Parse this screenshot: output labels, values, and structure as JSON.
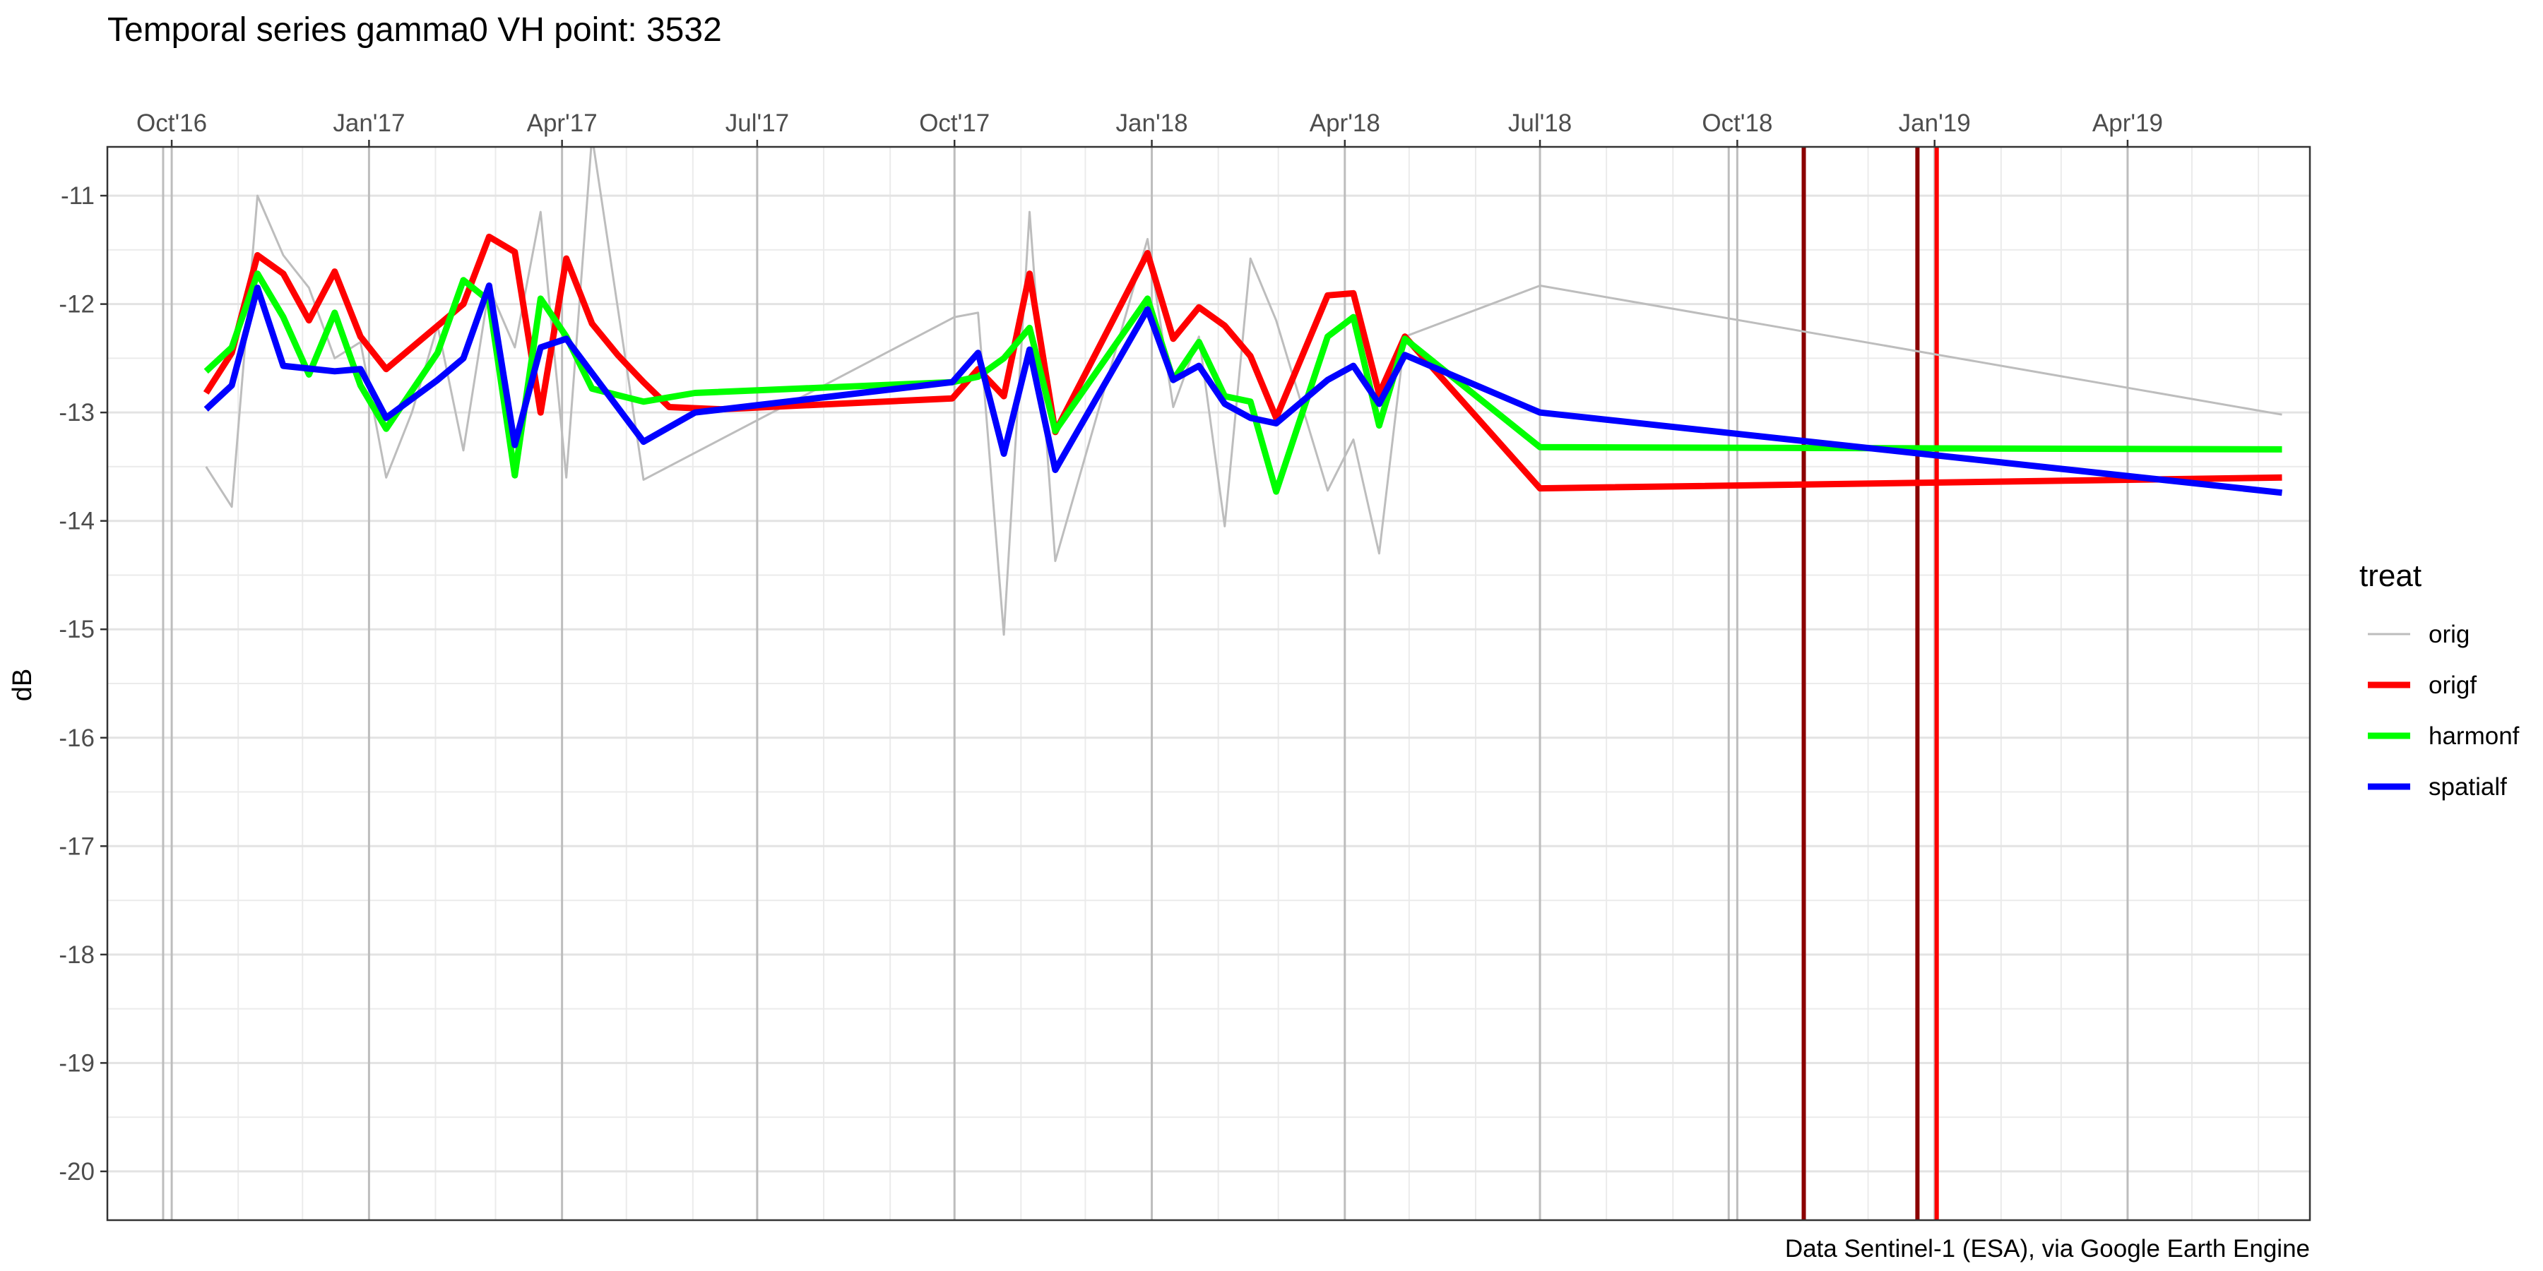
{
  "chart_data": {
    "type": "line",
    "title": "Temporal series gamma0 VH point: 3532",
    "ylabel": "dB",
    "xlabel": "",
    "caption": "Data Sentinel-1 (ESA), via Google Earth Engine",
    "legend": {
      "title": "treat",
      "position": "right"
    },
    "xlim": [
      "2016-09-01",
      "2019-06-25"
    ],
    "ylim": [
      -20.45,
      -10.55
    ],
    "grid": true,
    "x_ticks": [
      {
        "date": "2016-10-01",
        "label": "Oct'16"
      },
      {
        "date": "2017-01-01",
        "label": "Jan'17"
      },
      {
        "date": "2017-04-01",
        "label": "Apr'17"
      },
      {
        "date": "2017-07-01",
        "label": "Jul'17"
      },
      {
        "date": "2017-10-01",
        "label": "Oct'17"
      },
      {
        "date": "2018-01-01",
        "label": "Jan'18"
      },
      {
        "date": "2018-04-01",
        "label": "Apr'18"
      },
      {
        "date": "2018-07-01",
        "label": "Jul'18"
      },
      {
        "date": "2018-10-01",
        "label": "Oct'18"
      },
      {
        "date": "2019-01-01",
        "label": "Jan'19"
      },
      {
        "date": "2019-04-01",
        "label": "Apr'19"
      }
    ],
    "y_ticks": [
      -11,
      -12,
      -13,
      -14,
      -15,
      -16,
      -17,
      -18,
      -19,
      -20
    ],
    "y_tick_labels": [
      "-11",
      "-12",
      "-13",
      "-14",
      "-15",
      "-16",
      "-17",
      "-18",
      "-19",
      "-20"
    ],
    "vertical_lines": [
      {
        "date": "2016-09-27",
        "color": "#bdbdbd"
      },
      {
        "date": "2018-09-27",
        "color": "#bdbdbd"
      },
      {
        "date": "2018-11-01",
        "color": "#8b0000"
      },
      {
        "date": "2018-12-24",
        "color": "#8b0000"
      },
      {
        "date": "2019-01-02",
        "color": "#ff0000"
      }
    ],
    "series": [
      {
        "name": "orig",
        "color": "#bdbdbd",
        "width": 3,
        "points": [
          [
            "2016-10-17",
            -13.5
          ],
          [
            "2016-10-29",
            -13.87
          ],
          [
            "2016-11-10",
            -11.0
          ],
          [
            "2016-11-22",
            -11.55
          ],
          [
            "2016-12-04",
            -11.85
          ],
          [
            "2016-12-16",
            -12.5
          ],
          [
            "2016-12-28",
            -12.35
          ],
          [
            "2017-01-09",
            -13.6
          ],
          [
            "2017-01-21",
            -13.0
          ],
          [
            "2017-02-02",
            -12.2
          ],
          [
            "2017-02-14",
            -13.35
          ],
          [
            "2017-02-26",
            -11.85
          ],
          [
            "2017-03-10",
            -12.4
          ],
          [
            "2017-03-22",
            -11.15
          ],
          [
            "2017-04-03",
            -13.6
          ],
          [
            "2017-04-15",
            -10.45
          ],
          [
            "2017-05-09",
            -13.62
          ],
          [
            "2017-10-01",
            -12.12
          ],
          [
            "2017-10-12",
            -12.08
          ],
          [
            "2017-10-24",
            -15.05
          ],
          [
            "2017-11-05",
            -11.15
          ],
          [
            "2017-11-17",
            -14.37
          ],
          [
            "2017-12-30",
            -11.4
          ],
          [
            "2018-01-11",
            -12.95
          ],
          [
            "2018-01-23",
            -12.3
          ],
          [
            "2018-02-04",
            -14.05
          ],
          [
            "2018-02-16",
            -11.58
          ],
          [
            "2018-02-28",
            -12.15
          ],
          [
            "2018-03-24",
            -13.72
          ],
          [
            "2018-04-05",
            -13.25
          ],
          [
            "2018-04-17",
            -14.3
          ],
          [
            "2018-04-29",
            -12.3
          ],
          [
            "2018-07-01",
            -11.83
          ],
          [
            "2019-06-12",
            -13.02
          ]
        ]
      },
      {
        "name": "origf",
        "color": "#ff0000",
        "width": 9,
        "points": [
          [
            "2016-10-17",
            -12.82
          ],
          [
            "2016-10-29",
            -12.45
          ],
          [
            "2016-11-10",
            -11.55
          ],
          [
            "2016-11-22",
            -11.72
          ],
          [
            "2016-12-04",
            -12.15
          ],
          [
            "2016-12-16",
            -11.7
          ],
          [
            "2016-12-28",
            -12.3
          ],
          [
            "2017-01-09",
            -12.6
          ],
          [
            "2017-02-14",
            -12.0
          ],
          [
            "2017-02-26",
            -11.38
          ],
          [
            "2017-03-10",
            -11.52
          ],
          [
            "2017-03-22",
            -13.0
          ],
          [
            "2017-04-03",
            -11.58
          ],
          [
            "2017-04-15",
            -12.18
          ],
          [
            "2017-04-27",
            -12.47
          ],
          [
            "2017-05-09",
            -12.72
          ],
          [
            "2017-05-21",
            -12.95
          ],
          [
            "2017-06-14",
            -12.97
          ],
          [
            "2017-09-30",
            -12.87
          ],
          [
            "2017-10-12",
            -12.6
          ],
          [
            "2017-10-24",
            -12.85
          ],
          [
            "2017-11-05",
            -11.72
          ],
          [
            "2017-11-17",
            -13.18
          ],
          [
            "2017-12-30",
            -11.53
          ],
          [
            "2018-01-11",
            -12.32
          ],
          [
            "2018-01-23",
            -12.03
          ],
          [
            "2018-02-04",
            -12.2
          ],
          [
            "2018-02-16",
            -12.48
          ],
          [
            "2018-02-28",
            -13.05
          ],
          [
            "2018-03-24",
            -11.92
          ],
          [
            "2018-04-05",
            -11.9
          ],
          [
            "2018-04-17",
            -12.83
          ],
          [
            "2018-04-29",
            -12.3
          ],
          [
            "2018-07-01",
            -13.7
          ],
          [
            "2019-06-12",
            -13.6
          ]
        ]
      },
      {
        "name": "harmonf",
        "color": "#00ff00",
        "width": 9,
        "points": [
          [
            "2016-10-17",
            -12.62
          ],
          [
            "2016-10-29",
            -12.4
          ],
          [
            "2016-11-10",
            -11.72
          ],
          [
            "2016-11-22",
            -12.12
          ],
          [
            "2016-12-04",
            -12.65
          ],
          [
            "2016-12-16",
            -12.08
          ],
          [
            "2016-12-28",
            -12.75
          ],
          [
            "2017-01-09",
            -13.15
          ],
          [
            "2017-02-02",
            -12.45
          ],
          [
            "2017-02-14",
            -11.78
          ],
          [
            "2017-02-26",
            -11.97
          ],
          [
            "2017-03-10",
            -13.58
          ],
          [
            "2017-03-22",
            -11.95
          ],
          [
            "2017-04-03",
            -12.3
          ],
          [
            "2017-04-15",
            -12.78
          ],
          [
            "2017-05-09",
            -12.9
          ],
          [
            "2017-06-02",
            -12.82
          ],
          [
            "2017-09-30",
            -12.72
          ],
          [
            "2017-10-12",
            -12.67
          ],
          [
            "2017-10-24",
            -12.5
          ],
          [
            "2017-11-05",
            -12.22
          ],
          [
            "2017-11-17",
            -13.17
          ],
          [
            "2017-12-30",
            -11.95
          ],
          [
            "2018-01-11",
            -12.7
          ],
          [
            "2018-01-23",
            -12.35
          ],
          [
            "2018-02-04",
            -12.85
          ],
          [
            "2018-02-16",
            -12.9
          ],
          [
            "2018-02-28",
            -13.73
          ],
          [
            "2018-03-24",
            -12.3
          ],
          [
            "2018-04-05",
            -12.12
          ],
          [
            "2018-04-17",
            -13.12
          ],
          [
            "2018-04-29",
            -12.32
          ],
          [
            "2018-07-01",
            -13.32
          ],
          [
            "2019-06-12",
            -13.34
          ]
        ]
      },
      {
        "name": "spatialf",
        "color": "#0000ff",
        "width": 9,
        "points": [
          [
            "2016-10-17",
            -12.97
          ],
          [
            "2016-10-29",
            -12.75
          ],
          [
            "2016-11-10",
            -11.85
          ],
          [
            "2016-11-22",
            -12.57
          ],
          [
            "2016-12-16",
            -12.62
          ],
          [
            "2016-12-28",
            -12.6
          ],
          [
            "2017-01-09",
            -13.05
          ],
          [
            "2017-02-02",
            -12.7
          ],
          [
            "2017-02-14",
            -12.5
          ],
          [
            "2017-02-26",
            -11.83
          ],
          [
            "2017-03-10",
            -13.3
          ],
          [
            "2017-03-22",
            -12.4
          ],
          [
            "2017-04-03",
            -12.32
          ],
          [
            "2017-05-09",
            -13.27
          ],
          [
            "2017-06-02",
            -13.0
          ],
          [
            "2017-09-30",
            -12.72
          ],
          [
            "2017-10-12",
            -12.45
          ],
          [
            "2017-10-24",
            -13.38
          ],
          [
            "2017-11-05",
            -12.42
          ],
          [
            "2017-11-17",
            -13.53
          ],
          [
            "2017-12-30",
            -12.05
          ],
          [
            "2018-01-11",
            -12.7
          ],
          [
            "2018-01-23",
            -12.57
          ],
          [
            "2018-02-04",
            -12.92
          ],
          [
            "2018-02-16",
            -13.05
          ],
          [
            "2018-02-28",
            -13.1
          ],
          [
            "2018-03-24",
            -12.7
          ],
          [
            "2018-04-05",
            -12.57
          ],
          [
            "2018-04-17",
            -12.92
          ],
          [
            "2018-04-29",
            -12.47
          ],
          [
            "2018-07-01",
            -13.0
          ],
          [
            "2019-06-12",
            -13.74
          ]
        ]
      }
    ]
  }
}
